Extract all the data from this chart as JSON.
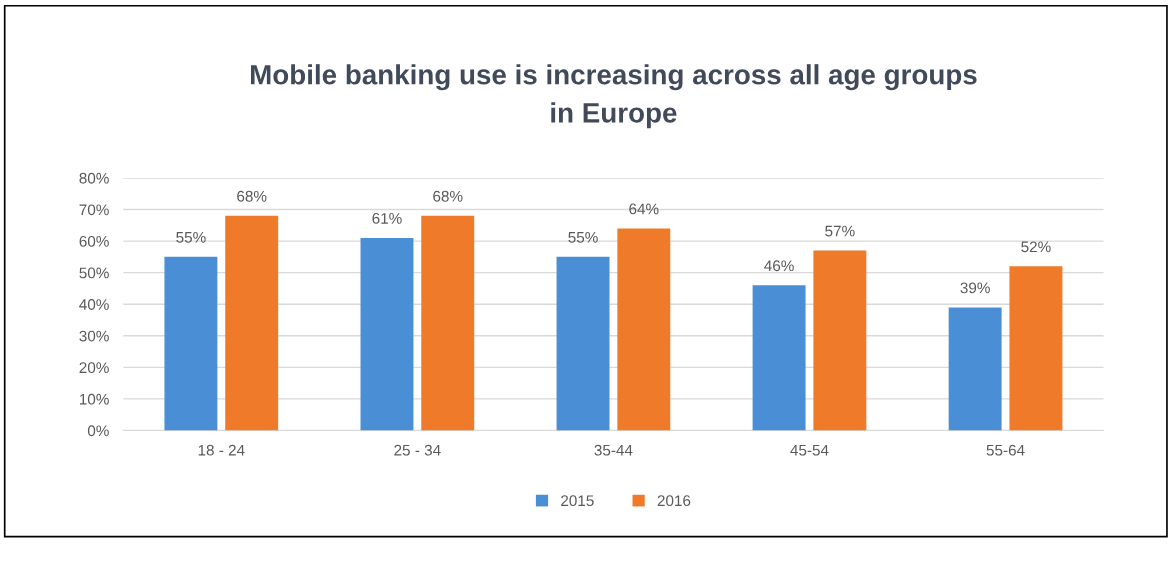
{
  "chart_data": {
    "type": "bar",
    "title": "Mobile banking use is increasing across all age groups\nin Europe",
    "categories": [
      "18 - 24",
      "25 - 34",
      "35-44",
      "45-54",
      "55-64"
    ],
    "series": [
      {
        "name": "2015",
        "color": "#4a8fd6",
        "values": [
          55,
          61,
          55,
          46,
          39
        ],
        "value_labels": [
          "55%",
          "61%",
          "55%",
          "46%",
          "39%"
        ]
      },
      {
        "name": "2016",
        "color": "#ee7a2a",
        "values": [
          68,
          68,
          64,
          57,
          52
        ],
        "value_labels": [
          "68%",
          "68%",
          "64%",
          "57%",
          "52%"
        ]
      }
    ],
    "ylim": [
      0,
      80
    ],
    "yticks": [
      {
        "value": 0,
        "label": "0%"
      },
      {
        "value": 10,
        "label": "10%"
      },
      {
        "value": 20,
        "label": "20%"
      },
      {
        "value": 30,
        "label": "30%"
      },
      {
        "value": 40,
        "label": "40%"
      },
      {
        "value": 50,
        "label": "50%"
      },
      {
        "value": 60,
        "label": "60%"
      },
      {
        "value": 70,
        "label": "70%"
      },
      {
        "value": 80,
        "label": "80%"
      }
    ],
    "grid": "y",
    "legend": "bottom"
  }
}
